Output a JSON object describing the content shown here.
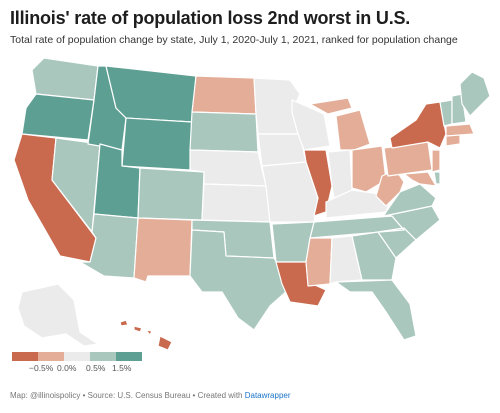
{
  "header": {
    "title": "Illinois' rate of population loss 2nd worst in U.S.",
    "subtitle": "Total rate of population change by state, July 1, 2020-July 1, 2021, ranked for population change"
  },
  "colors": {
    "dark_loss": "#c9694d",
    "light_loss": "#e3ad97",
    "neutral": "#ebebeb",
    "light_gain": "#a9c7bd",
    "dark_gain": "#5e9f93"
  },
  "legend": {
    "ticks": [
      "−0.5%",
      "0.0%",
      "0.5%",
      "1.5%"
    ]
  },
  "footer": {
    "source": "Map: @illinoispolicy • Source: U.S. Census Bureau • Created with ",
    "tool": "Datawrapper"
  }
}
